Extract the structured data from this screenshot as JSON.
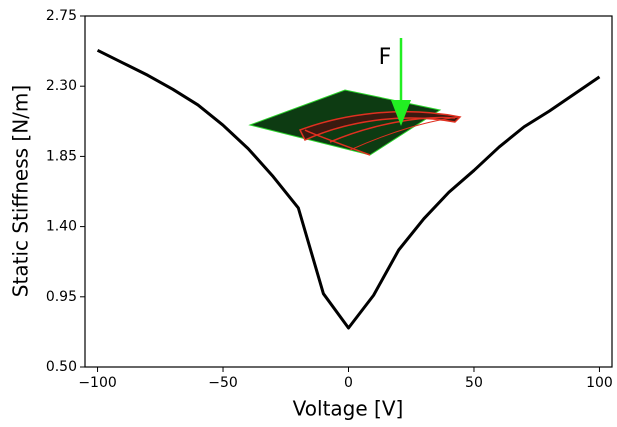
{
  "chart_data": {
    "type": "line",
    "annotation": "F",
    "x_label": "Voltage [V]",
    "y_label": "Static Stiffness [N/m]",
    "x": [
      -100,
      -90,
      -80,
      -70,
      -60,
      -50,
      -40,
      -30,
      -20,
      -10,
      0,
      10,
      20,
      30,
      40,
      50,
      60,
      70,
      80,
      90,
      100
    ],
    "series": [
      {
        "color": "#000000",
        "values": [
          2.53,
          2.45,
          2.37,
          2.28,
          2.18,
          2.05,
          1.9,
          1.72,
          1.52,
          0.97,
          0.75,
          0.96,
          1.25,
          1.45,
          1.62,
          1.76,
          1.91,
          2.04,
          2.14,
          2.25,
          2.36
        ]
      }
    ],
    "xlim": [
      -105,
      105
    ],
    "ylim": [
      0.5,
      2.75
    ],
    "xticks": [
      {
        "value": -100,
        "label": "−100"
      },
      {
        "value": -50,
        "label": "−50"
      },
      0,
      50,
      100
    ],
    "yticks": [
      {
        "value": 0.5,
        "label": "0.50"
      },
      0.95,
      {
        "value": 1.4,
        "label": "1.40"
      },
      1.85,
      {
        "value": 2.3,
        "label": "2.30"
      },
      2.75
    ]
  }
}
